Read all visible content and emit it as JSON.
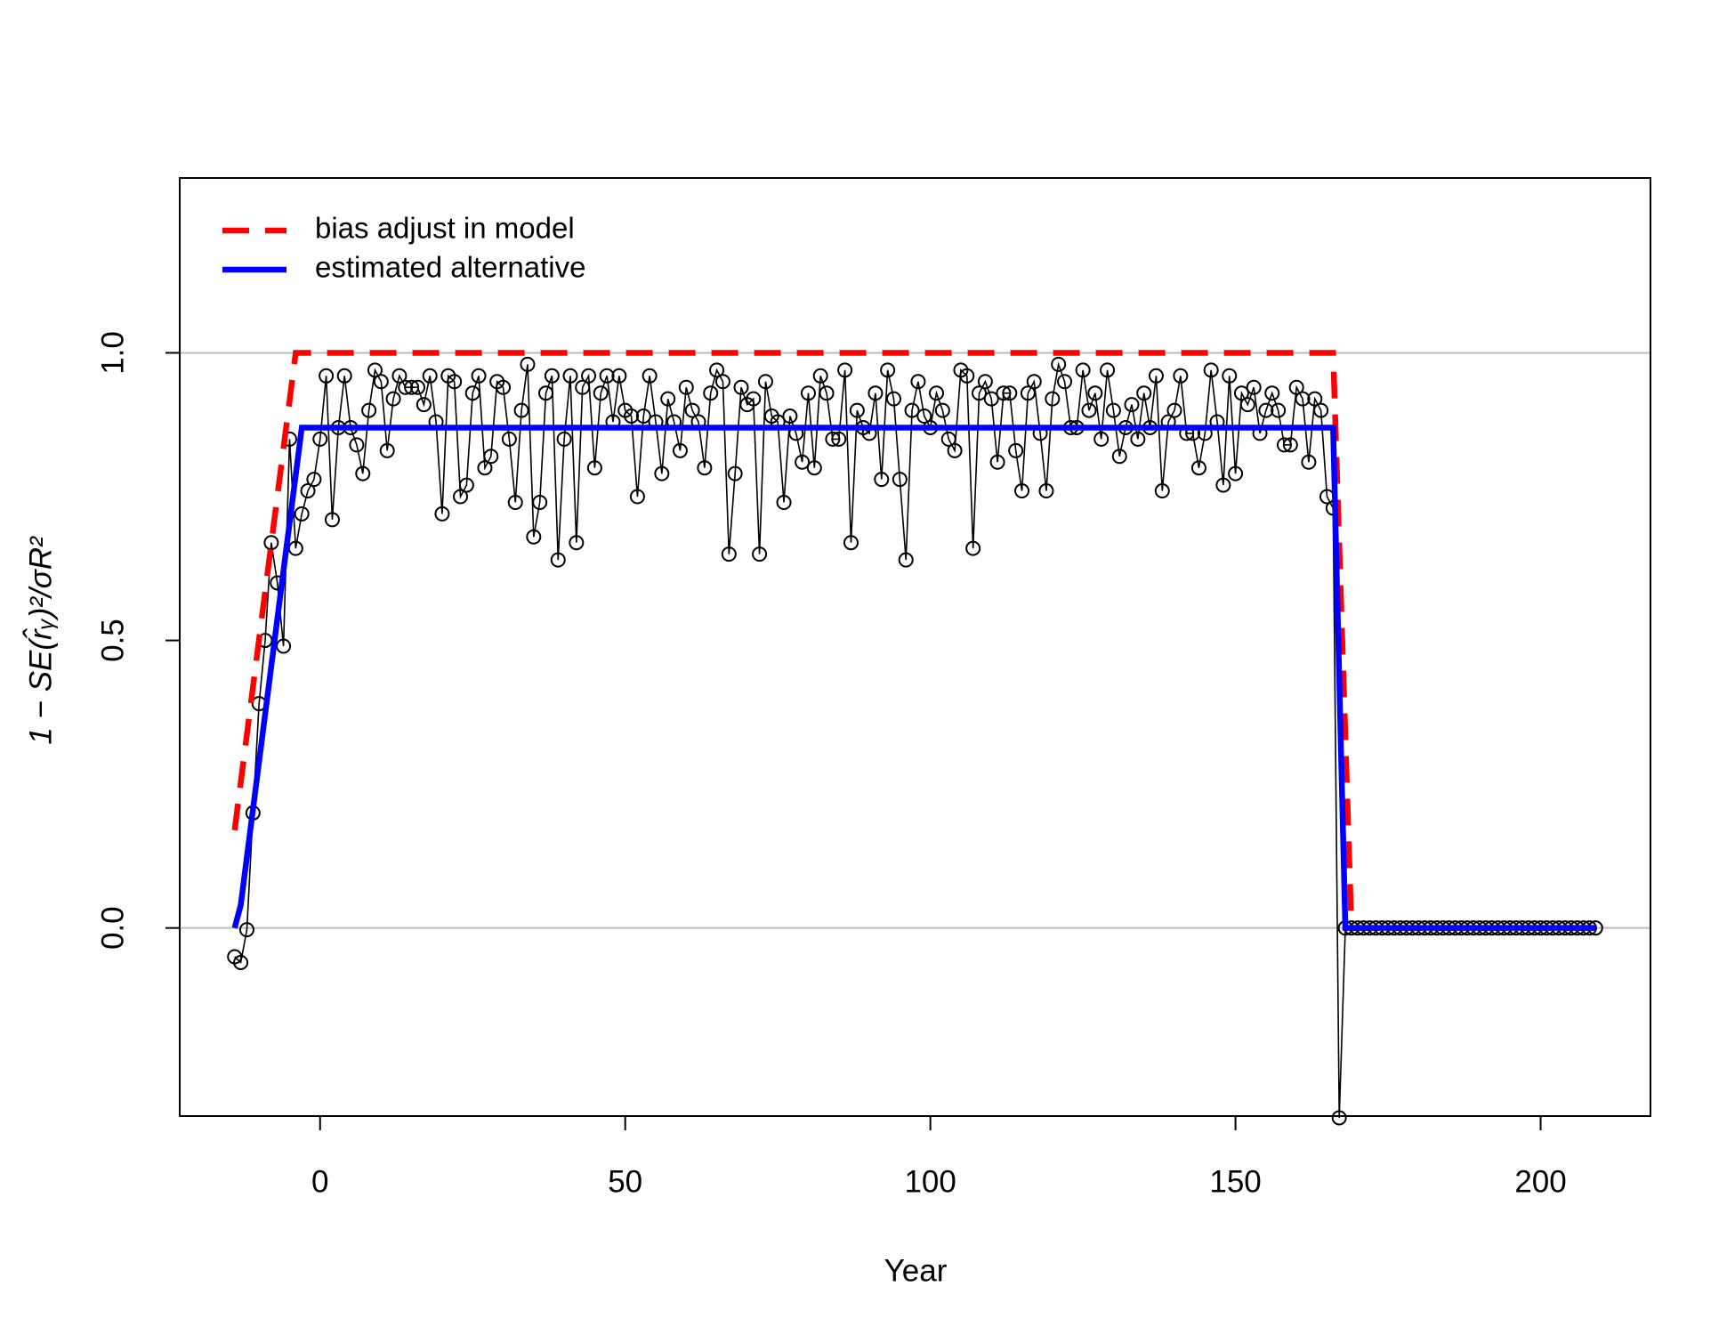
{
  "chart_data": {
    "type": "line",
    "xlabel": "Year",
    "ylabel": "1 − SE(r̂ᵧ)²/σR²",
    "xlim": [
      -23,
      218
    ],
    "ylim": [
      -0.327,
      1.304
    ],
    "xticks": [
      0,
      50,
      100,
      150,
      200
    ],
    "yticks": [
      {
        "value": 0,
        "label": "0.0"
      },
      {
        "value": 0.5,
        "label": "0.5"
      },
      {
        "value": 1,
        "label": "1.0"
      }
    ],
    "hlines": [
      0,
      1
    ],
    "legend": "top-left",
    "points_color": "#000000",
    "x": [
      -14,
      -13,
      -12,
      -11,
      -10,
      -9,
      -8,
      -7,
      -6,
      -5,
      -4,
      -3,
      -2,
      -1,
      0,
      1,
      2,
      3,
      4,
      5,
      6,
      7,
      8,
      9,
      10,
      11,
      12,
      13,
      14,
      15,
      16,
      17,
      18,
      19,
      20,
      21,
      22,
      23,
      24,
      25,
      26,
      27,
      28,
      29,
      30,
      31,
      32,
      33,
      34,
      35,
      36,
      37,
      38,
      39,
      40,
      41,
      42,
      43,
      44,
      45,
      46,
      47,
      48,
      49,
      50,
      51,
      52,
      53,
      54,
      55,
      56,
      57,
      58,
      59,
      60,
      61,
      62,
      63,
      64,
      65,
      66,
      67,
      68,
      69,
      70,
      71,
      72,
      73,
      74,
      75,
      76,
      77,
      78,
      79,
      80,
      81,
      82,
      83,
      84,
      85,
      86,
      87,
      88,
      89,
      90,
      91,
      92,
      93,
      94,
      95,
      96,
      97,
      98,
      99,
      100,
      101,
      102,
      103,
      104,
      105,
      106,
      107,
      108,
      109,
      110,
      111,
      112,
      113,
      114,
      115,
      116,
      117,
      118,
      119,
      120,
      121,
      122,
      123,
      124,
      125,
      126,
      127,
      128,
      129,
      130,
      131,
      132,
      133,
      134,
      135,
      136,
      137,
      138,
      139,
      140,
      141,
      142,
      143,
      144,
      145,
      146,
      147,
      148,
      149,
      150,
      151,
      152,
      153,
      154,
      155,
      156,
      157,
      158,
      159,
      160,
      161,
      162,
      163,
      164,
      165,
      166,
      167,
      168,
      169,
      170,
      171,
      172,
      173,
      174,
      175,
      176,
      177,
      178,
      179,
      180,
      181,
      182,
      183,
      184,
      185,
      186,
      187,
      188,
      189,
      190,
      191,
      192,
      193,
      194,
      195,
      196,
      197,
      198,
      199,
      200,
      201,
      202,
      203,
      204,
      205,
      206,
      207,
      208,
      209
    ],
    "values": [
      -0.05,
      -0.06,
      -0.003,
      0.2,
      0.39,
      0.5,
      0.67,
      0.6,
      0.49,
      0.85,
      0.66,
      0.72,
      0.76,
      0.78,
      0.85,
      0.96,
      0.71,
      0.87,
      0.96,
      0.87,
      0.84,
      0.79,
      0.9,
      0.97,
      0.95,
      0.83,
      0.92,
      0.96,
      0.94,
      0.94,
      0.94,
      0.91,
      0.96,
      0.88,
      0.72,
      0.96,
      0.95,
      0.75,
      0.77,
      0.93,
      0.96,
      0.8,
      0.82,
      0.95,
      0.94,
      0.85,
      0.74,
      0.9,
      0.98,
      0.68,
      0.74,
      0.93,
      0.96,
      0.64,
      0.85,
      0.96,
      0.67,
      0.94,
      0.96,
      0.8,
      0.93,
      0.96,
      0.88,
      0.96,
      0.9,
      0.89,
      0.75,
      0.89,
      0.96,
      0.88,
      0.79,
      0.92,
      0.88,
      0.83,
      0.94,
      0.9,
      0.88,
      0.8,
      0.93,
      0.97,
      0.95,
      0.65,
      0.79,
      0.94,
      0.91,
      0.92,
      0.65,
      0.95,
      0.89,
      0.88,
      0.74,
      0.89,
      0.86,
      0.81,
      0.93,
      0.8,
      0.96,
      0.93,
      0.85,
      0.85,
      0.97,
      0.67,
      0.9,
      0.87,
      0.86,
      0.93,
      0.78,
      0.97,
      0.92,
      0.78,
      0.64,
      0.9,
      0.95,
      0.89,
      0.87,
      0.93,
      0.9,
      0.85,
      0.83,
      0.97,
      0.96,
      0.66,
      0.93,
      0.95,
      0.92,
      0.81,
      0.93,
      0.93,
      0.83,
      0.76,
      0.93,
      0.95,
      0.86,
      0.76,
      0.92,
      0.98,
      0.95,
      0.87,
      0.87,
      0.97,
      0.9,
      0.93,
      0.85,
      0.97,
      0.9,
      0.82,
      0.87,
      0.91,
      0.85,
      0.93,
      0.87,
      0.96,
      0.76,
      0.88,
      0.9,
      0.96,
      0.86,
      0.86,
      0.8,
      0.86,
      0.97,
      0.88,
      0.77,
      0.96,
      0.79,
      0.93,
      0.91,
      0.94,
      0.86,
      0.9,
      0.93,
      0.9,
      0.84,
      0.84,
      0.94,
      0.92,
      0.81,
      0.92,
      0.9,
      0.75,
      0.73,
      -0.33,
      0,
      0,
      0,
      0,
      0,
      0,
      0,
      0,
      0,
      0,
      0,
      0,
      0,
      0,
      0,
      0,
      0,
      0,
      0,
      0,
      0,
      0,
      0,
      0,
      0,
      0,
      0,
      0,
      0,
      0,
      0,
      0,
      0,
      0,
      0,
      0,
      0,
      0,
      0,
      0,
      0,
      0
    ],
    "series": [
      {
        "name": "bias adjust in model",
        "color": "#ff0000",
        "dashed": true,
        "x": [
          -14,
          -4,
          166,
          169,
          209
        ],
        "values": [
          0.17,
          1,
          1,
          0,
          0
        ]
      },
      {
        "name": "estimated alternative",
        "color": "#0000ff",
        "dashed": false,
        "x": [
          -14,
          -13,
          -3,
          166,
          168,
          209
        ],
        "values": [
          0,
          0.04,
          0.87,
          0.87,
          0,
          0
        ]
      }
    ]
  }
}
